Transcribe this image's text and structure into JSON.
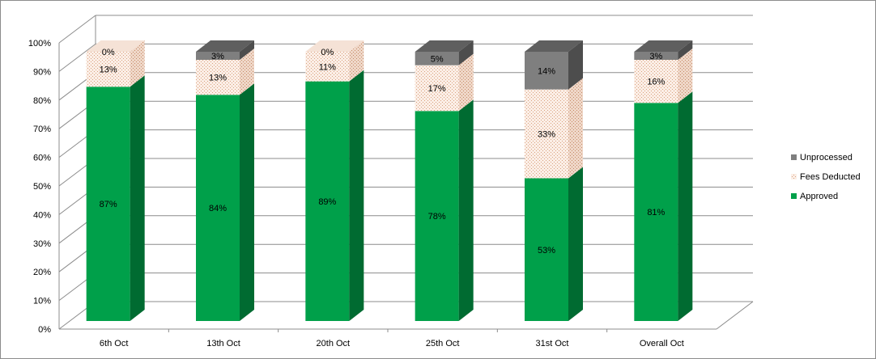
{
  "chart_data": {
    "type": "bar",
    "stacked": true,
    "percent_stacked": true,
    "three_d": true,
    "categories": [
      "6th Oct",
      "13th Oct",
      "20th Oct",
      "25th Oct",
      "31st Oct",
      "Overall Oct"
    ],
    "series": [
      {
        "name": "Approved",
        "values": [
          87,
          84,
          89,
          78,
          53,
          81
        ],
        "labels": [
          "87%",
          "84%",
          "89%",
          "78%",
          "53%",
          "81%"
        ]
      },
      {
        "name": "Fees Deducted",
        "values": [
          13,
          13,
          11,
          17,
          33,
          16
        ],
        "labels": [
          "13%",
          "13%",
          "11%",
          "17%",
          "33%",
          "16%"
        ]
      },
      {
        "name": "Unprocessed",
        "values": [
          0,
          3,
          0,
          5,
          14,
          3
        ],
        "labels": [
          "0%",
          "3%",
          "0%",
          "5%",
          "14%",
          "3%"
        ]
      }
    ],
    "ylim": [
      0,
      100
    ],
    "y_ticks": [
      "0%",
      "10%",
      "20%",
      "30%",
      "40%",
      "50%",
      "60%",
      "70%",
      "80%",
      "90%",
      "100%"
    ],
    "grid": true,
    "legend_position": "right",
    "colors": {
      "Approved": "#00a04a",
      "Fees Deducted": "#f3d9cc",
      "Unprocessed": "#7f7f7f",
      "grid": "#8c8c8c"
    }
  }
}
